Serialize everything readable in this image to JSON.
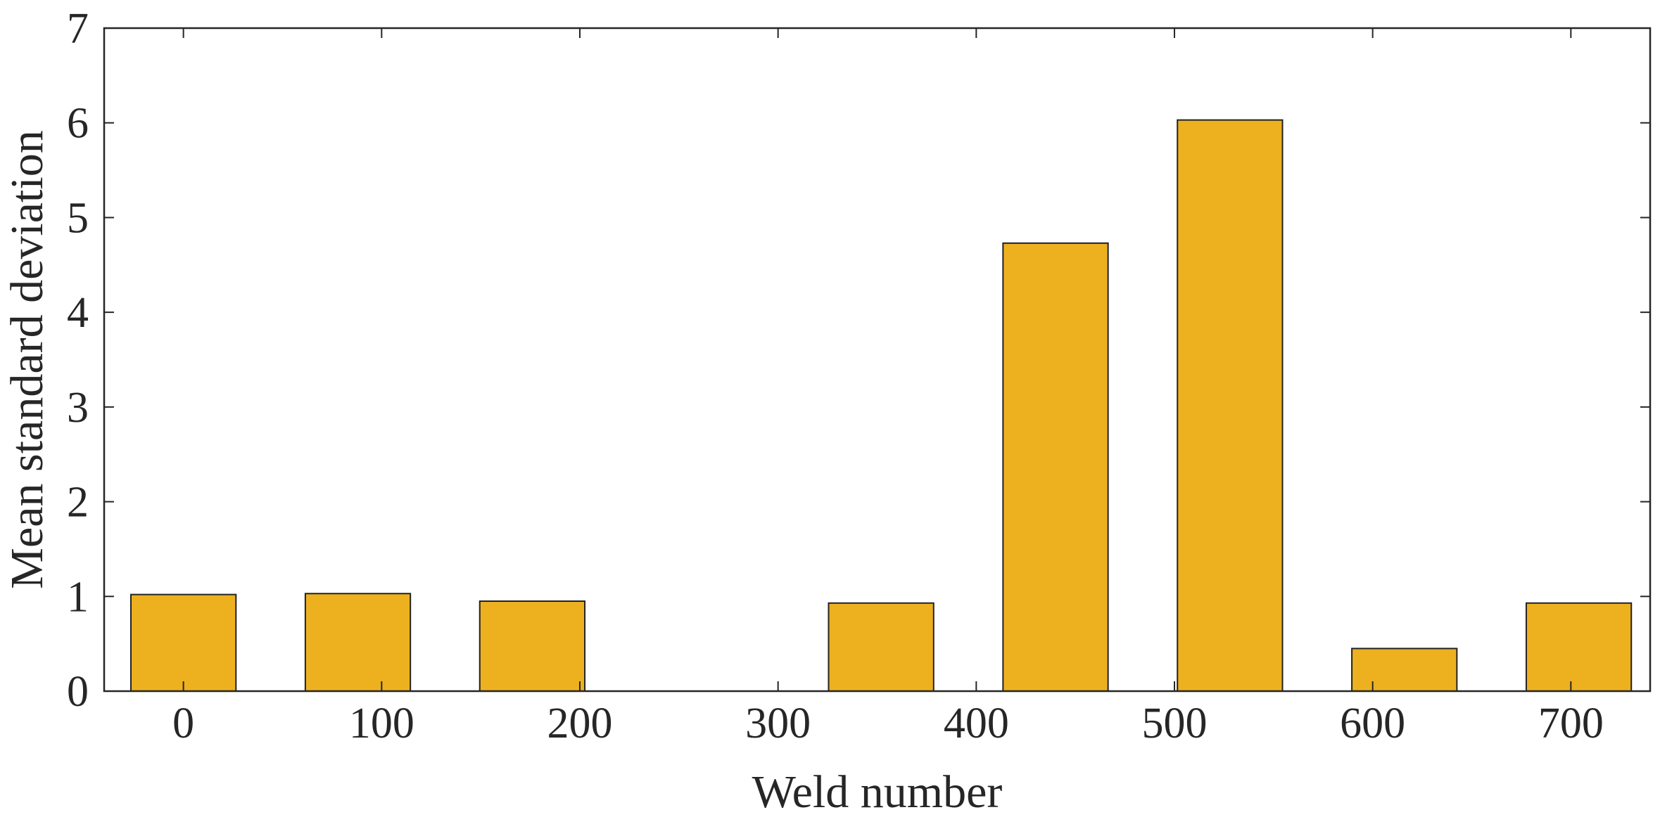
{
  "chart_data": {
    "type": "bar",
    "xlabel": "Weld number",
    "ylabel": "Mean standard deviation",
    "x": [
      0,
      88,
      176,
      264,
      352,
      440,
      528,
      616,
      704
    ],
    "values": [
      1.02,
      1.03,
      0.95,
      0,
      0.93,
      4.73,
      6.03,
      0.45,
      0.93
    ],
    "bar_width": 53,
    "xlim": [
      -40,
      740
    ],
    "ylim": [
      0,
      7
    ],
    "xticks": [
      0,
      100,
      200,
      300,
      400,
      500,
      600,
      700
    ],
    "xtick_labels": [
      "0",
      "100",
      "200",
      "300",
      "400",
      "500",
      "600",
      "700"
    ],
    "yticks": [
      0,
      1,
      2,
      3,
      4,
      5,
      6,
      7
    ],
    "ytick_labels": [
      "0",
      "1",
      "2",
      "3",
      "4",
      "5",
      "6",
      "7"
    ],
    "bar_color": "#EDB120",
    "grid": false,
    "box": true
  }
}
